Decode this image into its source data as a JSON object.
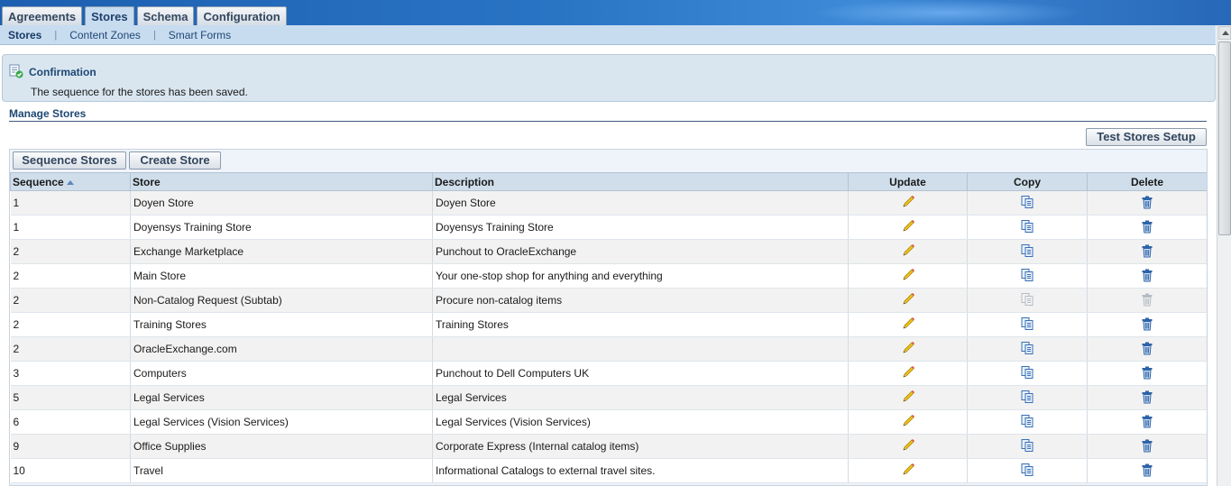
{
  "top_tabs": [
    {
      "label": "Agreements",
      "active": false
    },
    {
      "label": "Stores",
      "active": true
    },
    {
      "label": "Schema",
      "active": false
    },
    {
      "label": "Configuration",
      "active": false
    }
  ],
  "subnav": [
    {
      "label": "Stores",
      "active": true
    },
    {
      "label": "Content Zones",
      "active": false
    },
    {
      "label": "Smart Forms",
      "active": false
    }
  ],
  "confirmation": {
    "title": "Confirmation",
    "message": "The sequence for the stores has been saved."
  },
  "section_title": "Manage Stores",
  "buttons": {
    "test_stores_setup": "Test Stores Setup",
    "sequence_stores": "Sequence Stores",
    "create_store": "Create Store"
  },
  "table": {
    "columns": {
      "sequence": "Sequence",
      "store": "Store",
      "description": "Description",
      "update": "Update",
      "copy": "Copy",
      "delete": "Delete"
    },
    "rows": [
      {
        "sequence": "1",
        "store": "Doyen Store",
        "description": "Doyen Store",
        "copy_enabled": true,
        "delete_enabled": true
      },
      {
        "sequence": "1",
        "store": "Doyensys Training Store",
        "description": "Doyensys Training Store",
        "copy_enabled": true,
        "delete_enabled": true
      },
      {
        "sequence": "2",
        "store": "Exchange Marketplace",
        "description": "Punchout to OracleExchange",
        "copy_enabled": true,
        "delete_enabled": true
      },
      {
        "sequence": "2",
        "store": "Main Store",
        "description": "Your one-stop shop for anything and everything",
        "copy_enabled": true,
        "delete_enabled": true
      },
      {
        "sequence": "2",
        "store": "Non-Catalog Request (Subtab)",
        "description": "Procure non-catalog items",
        "copy_enabled": false,
        "delete_enabled": false
      },
      {
        "sequence": "2",
        "store": "Training Stores",
        "description": "Training Stores",
        "copy_enabled": true,
        "delete_enabled": true
      },
      {
        "sequence": "2",
        "store": "OracleExchange.com",
        "description": "",
        "copy_enabled": true,
        "delete_enabled": true
      },
      {
        "sequence": "3",
        "store": "Computers",
        "description": "Punchout to Dell Computers UK",
        "copy_enabled": true,
        "delete_enabled": true
      },
      {
        "sequence": "5",
        "store": "Legal Services",
        "description": "Legal Services",
        "copy_enabled": true,
        "delete_enabled": true
      },
      {
        "sequence": "6",
        "store": "Legal Services (Vision Services)",
        "description": "Legal Services (Vision Services)",
        "copy_enabled": true,
        "delete_enabled": true
      },
      {
        "sequence": "9",
        "store": "Office Supplies",
        "description": "Corporate Express (Internal catalog items)",
        "copy_enabled": true,
        "delete_enabled": true
      },
      {
        "sequence": "10",
        "store": "Travel",
        "description": "Informational Catalogs to external travel sites.",
        "copy_enabled": true,
        "delete_enabled": true
      }
    ]
  },
  "icons": {
    "update": "pencil-icon",
    "copy": "copy-icon",
    "delete": "trash-icon",
    "confirmation": "confirmation-check-icon",
    "sort": "sort-ascending-icon"
  }
}
